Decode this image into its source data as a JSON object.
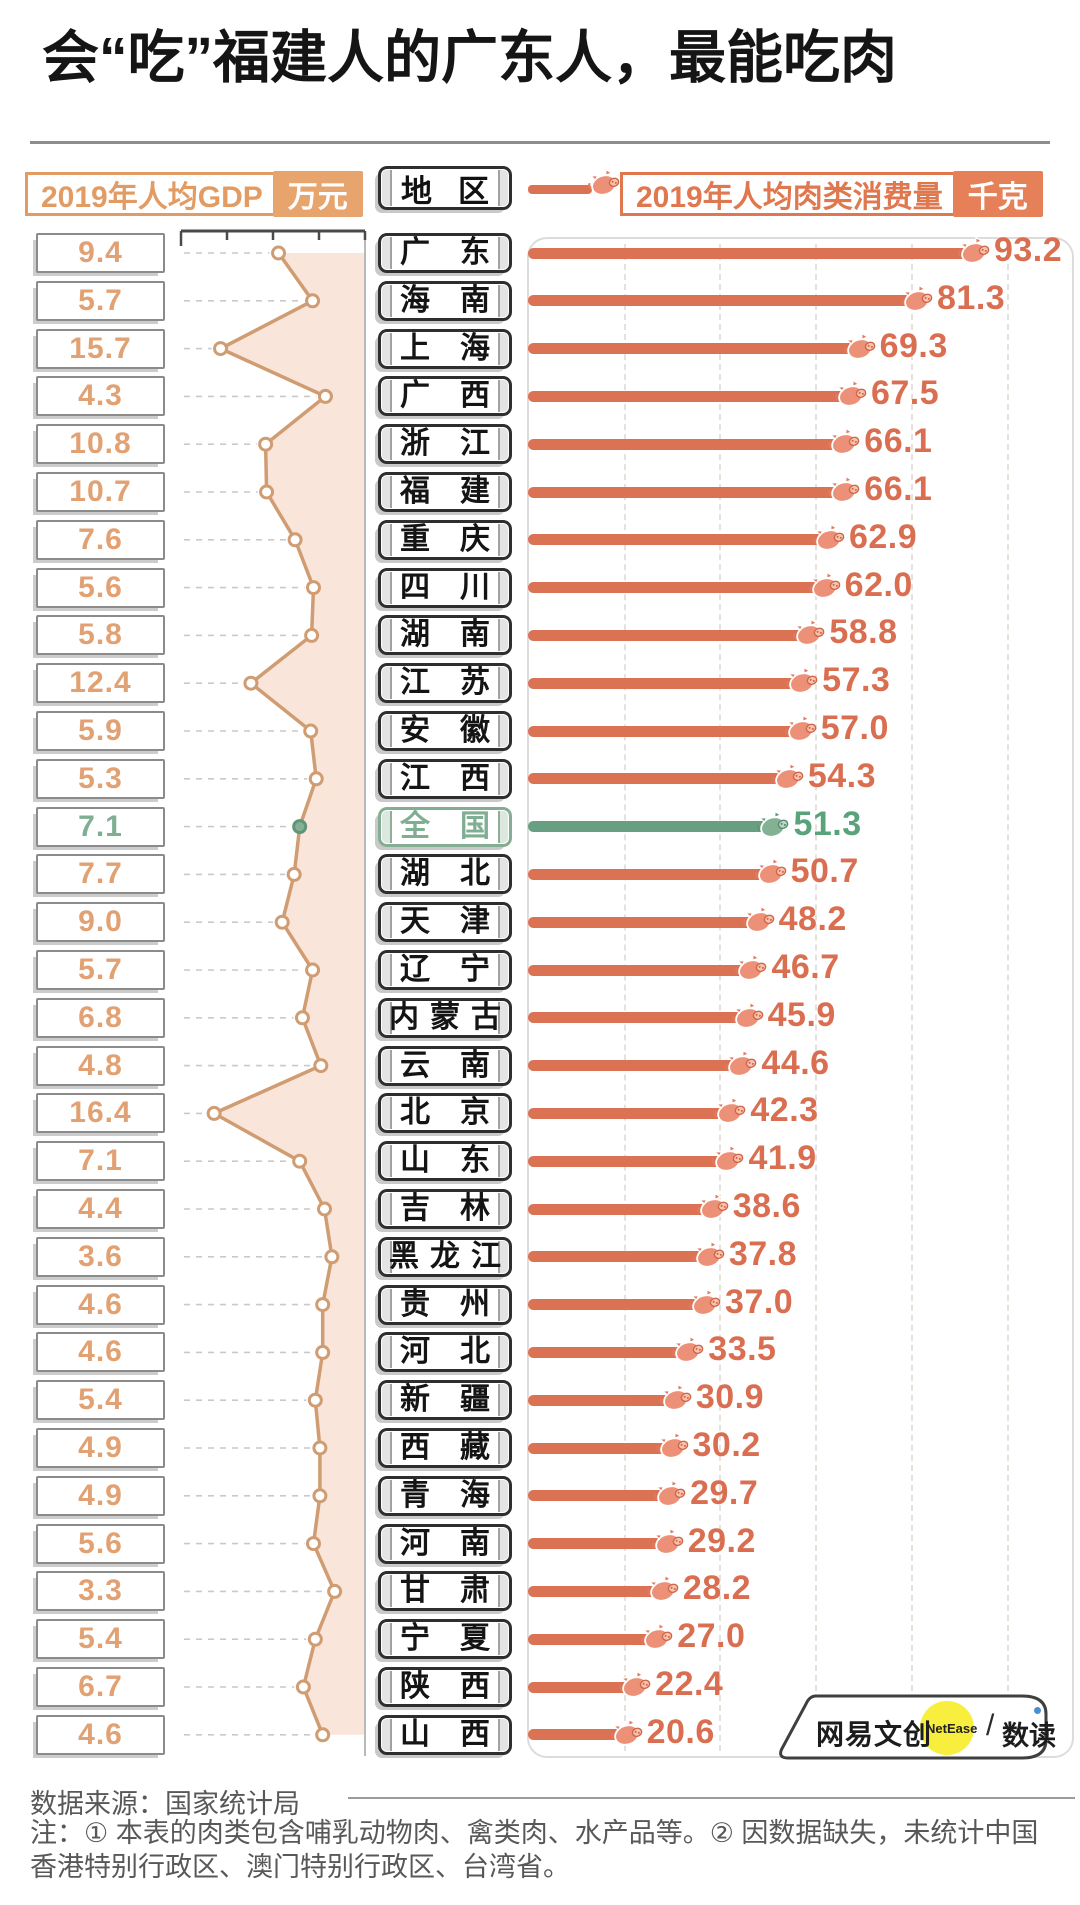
{
  "title": "会“吃”福建人的广东人，最能吃肉",
  "header": {
    "gdp_label": "2019年人均GDP",
    "gdp_unit": "万元",
    "region_label": "地区",
    "meat_label": "2019年人均肉类消费量",
    "meat_unit": "千克"
  },
  "chart_data": {
    "type": "bar",
    "orientation": "horizontal",
    "title": "会“吃”福建人的广东人，最能吃肉",
    "categories": [
      "广东",
      "海南",
      "上海",
      "广西",
      "浙江",
      "福建",
      "重庆",
      "四川",
      "湖南",
      "江苏",
      "安徽",
      "江西",
      "全国",
      "湖北",
      "天津",
      "辽宁",
      "内蒙古",
      "云南",
      "北京",
      "山东",
      "吉林",
      "黑龙江",
      "贵州",
      "河北",
      "新疆",
      "西藏",
      "青海",
      "河南",
      "甘肃",
      "宁夏",
      "陕西",
      "山西"
    ],
    "series": [
      {
        "name": "2019年人均GDP",
        "unit": "万元",
        "type": "line",
        "axis_range": [
          0,
          20
        ],
        "axis_inverted": true,
        "values": [
          9.4,
          5.7,
          15.7,
          4.3,
          10.8,
          10.7,
          7.6,
          5.6,
          5.8,
          12.4,
          5.9,
          5.3,
          7.1,
          7.7,
          9.0,
          5.7,
          6.8,
          4.8,
          16.4,
          7.1,
          4.4,
          3.6,
          4.6,
          4.6,
          5.4,
          4.9,
          4.9,
          5.6,
          3.3,
          5.4,
          6.7,
          4.6
        ]
      },
      {
        "name": "2019年人均肉类消费量",
        "unit": "千克",
        "type": "bar",
        "axis_range": [
          0,
          114
        ],
        "gridline_step": 20,
        "values": [
          93.2,
          81.3,
          69.3,
          67.5,
          66.1,
          66.1,
          62.9,
          62.0,
          58.8,
          57.3,
          57.0,
          54.3,
          51.3,
          50.7,
          48.2,
          46.7,
          45.9,
          44.6,
          42.3,
          41.9,
          38.6,
          37.8,
          37.0,
          33.5,
          30.9,
          30.2,
          29.7,
          29.2,
          28.2,
          27.0,
          22.4,
          20.6
        ]
      }
    ],
    "highlight_category": "全国",
    "highlight_color": "#689e81",
    "bar_color": "#dc7254",
    "legend_position": "top",
    "grid": true
  },
  "icons": {
    "marker": "pig-icon"
  },
  "logo": {
    "brand": "网易文创",
    "netease": "NetEase",
    "slash": "/",
    "product": "数读"
  },
  "footer": {
    "source": "数据来源：国家统计局",
    "note_line1": "注：① 本表的肉类包含哺乳动物肉、禽类肉、水产品等。② 因数据缺失，未统计中国",
    "note_line2": "香港特别行政区、澳门特别行政区、台湾省。"
  }
}
